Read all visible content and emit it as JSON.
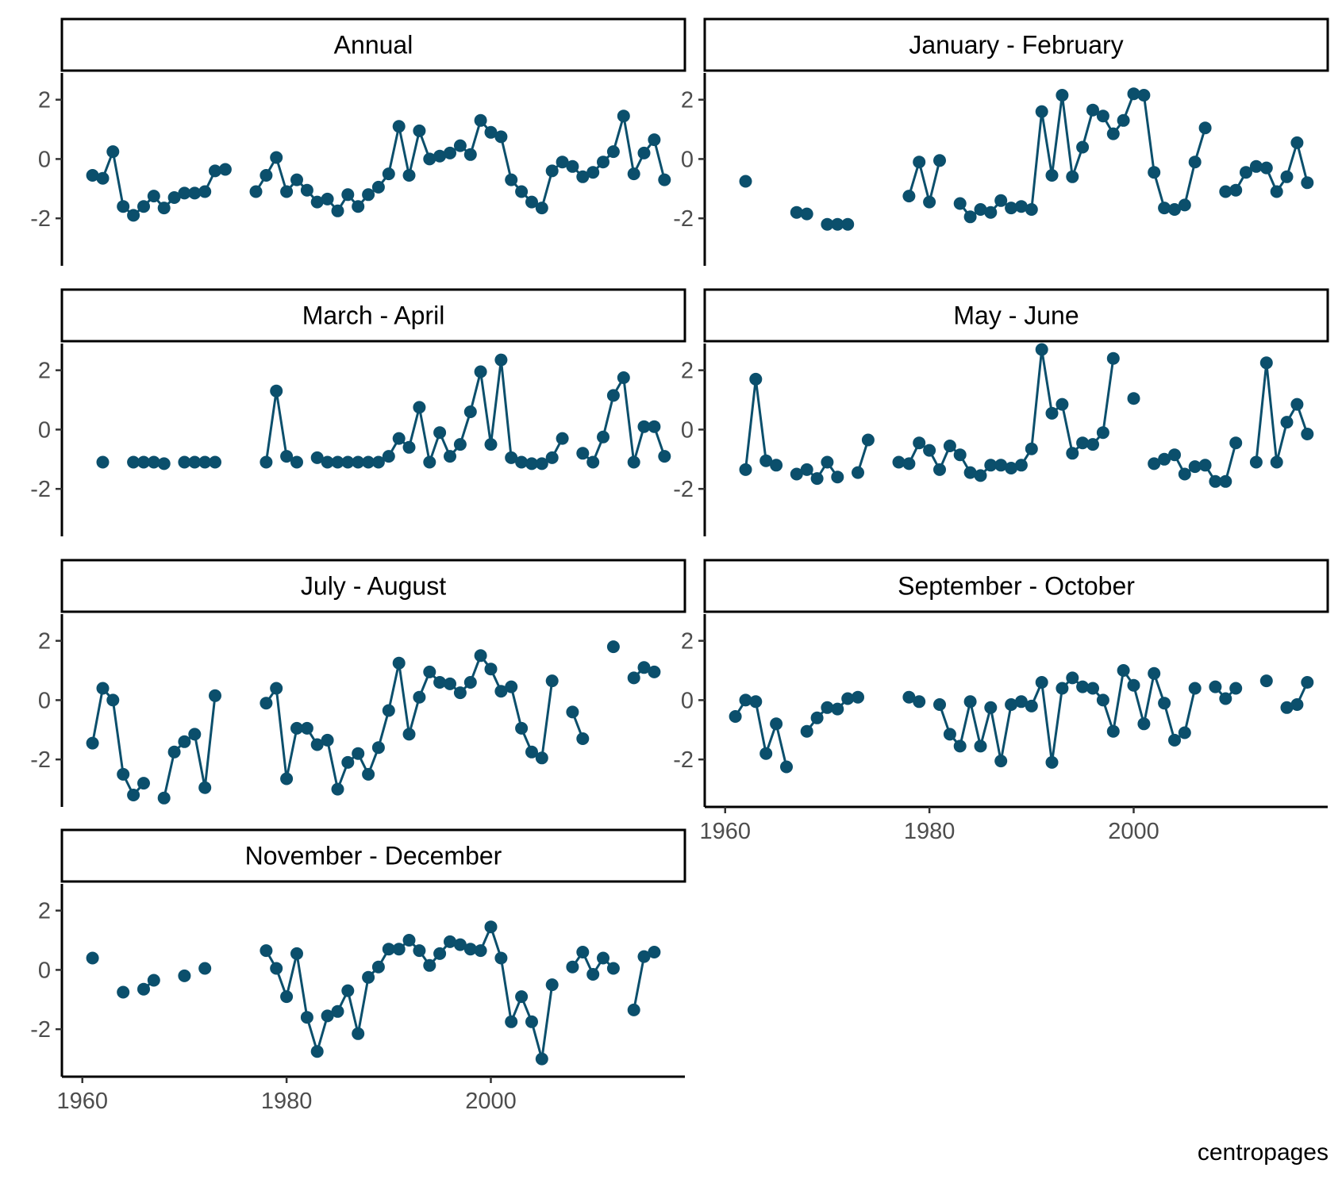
{
  "chart_data": {
    "type": "line",
    "layout": "facet-grid",
    "caption": "centropages",
    "series_color": "#0b4f6c",
    "ylim": [
      -3.6,
      2.9
    ],
    "yticks": [
      -2,
      0,
      2
    ],
    "ytick_labels": [
      "-2",
      "0",
      "2"
    ],
    "xlim": [
      1958,
      2019
    ],
    "xticks": [
      1960,
      1980,
      2000
    ],
    "xtick_labels": [
      "1960",
      "1980",
      "2000"
    ],
    "panels": [
      {
        "strip": "Annual",
        "x": [
          1961,
          1962,
          1963,
          1964,
          1965,
          1966,
          1967,
          1968,
          1969,
          1970,
          1971,
          1972,
          1973,
          1974,
          null,
          1977,
          1978,
          1979,
          1980,
          1981,
          1982,
          1983,
          1984,
          1985,
          1986,
          1987,
          1988,
          1989,
          1990,
          1991,
          1992,
          1993,
          1994,
          1995,
          1996,
          1997,
          1998,
          1999,
          2000,
          2001,
          2002,
          2003,
          2004,
          2005,
          2006,
          2007,
          2008,
          2009,
          2010,
          2011,
          2012,
          2013,
          2014,
          2015,
          2016,
          2017
        ],
        "y": [
          -0.55,
          -0.65,
          0.25,
          -1.6,
          -1.9,
          -1.6,
          -1.25,
          -1.65,
          -1.3,
          -1.15,
          -1.15,
          -1.1,
          -0.4,
          -0.35,
          null,
          -1.1,
          -0.55,
          0.05,
          -1.1,
          -0.7,
          -1.05,
          -1.45,
          -1.35,
          -1.75,
          -1.2,
          -1.6,
          -1.2,
          -0.95,
          -0.5,
          1.1,
          -0.55,
          0.95,
          0.0,
          0.1,
          0.2,
          0.45,
          0.15,
          1.3,
          0.9,
          0.75,
          -0.7,
          -1.1,
          -1.45,
          -1.65,
          -0.4,
          -0.1,
          -0.25,
          -0.6,
          -0.45,
          -0.1,
          0.25,
          1.45,
          -0.5,
          0.2,
          0.65,
          -0.7
        ]
      },
      {
        "strip": "January - February",
        "x": [
          1962,
          null,
          1967,
          1968,
          null,
          1970,
          1971,
          1972,
          null,
          1978,
          1979,
          1980,
          1981,
          null,
          1983,
          1984,
          1985,
          1986,
          1987,
          1988,
          1989,
          1990,
          1991,
          1992,
          1993,
          1994,
          1995,
          1996,
          1997,
          1998,
          1999,
          2000,
          2001,
          2002,
          2003,
          2004,
          2005,
          2006,
          2007,
          null,
          2009,
          2010,
          2011,
          2012,
          2013,
          2014,
          2015,
          2016,
          2017
        ],
        "y": [
          -0.75,
          null,
          -1.8,
          -1.85,
          null,
          -2.2,
          -2.2,
          -2.2,
          null,
          -1.25,
          -0.1,
          -1.45,
          -0.05,
          null,
          -1.5,
          -1.95,
          -1.7,
          -1.8,
          -1.4,
          -1.65,
          -1.6,
          -1.7,
          1.6,
          -0.55,
          2.15,
          -0.6,
          0.4,
          1.65,
          1.45,
          0.85,
          1.3,
          2.2,
          2.15,
          -0.45,
          -1.65,
          -1.7,
          -1.55,
          -0.1,
          1.05,
          null,
          -1.1,
          -1.05,
          -0.45,
          -0.25,
          -0.3,
          -1.1,
          -0.6,
          0.55,
          -0.8
        ]
      },
      {
        "strip": "March - April",
        "x": [
          1962,
          null,
          1965,
          1966,
          1967,
          1968,
          null,
          1970,
          1971,
          1972,
          1973,
          null,
          1978,
          1979,
          1980,
          1981,
          null,
          1983,
          1984,
          1985,
          1986,
          1987,
          1988,
          1989,
          1990,
          1991,
          1992,
          1993,
          1994,
          1995,
          1996,
          1997,
          1998,
          1999,
          2000,
          2001,
          2002,
          2003,
          2004,
          2005,
          2006,
          2007,
          null,
          2009,
          2010,
          2011,
          2012,
          2013,
          2014,
          2015,
          2016,
          2017
        ],
        "y": [
          -1.1,
          null,
          -1.1,
          -1.1,
          -1.1,
          -1.15,
          null,
          -1.1,
          -1.1,
          -1.1,
          -1.1,
          null,
          -1.1,
          1.3,
          -0.9,
          -1.1,
          null,
          -0.95,
          -1.1,
          -1.1,
          -1.1,
          -1.1,
          -1.1,
          -1.1,
          -0.9,
          -0.3,
          -0.6,
          0.75,
          -1.1,
          -0.1,
          -0.9,
          -0.5,
          0.6,
          1.95,
          -0.5,
          2.35,
          -0.95,
          -1.1,
          -1.15,
          -1.15,
          -0.95,
          -0.3,
          null,
          -0.8,
          -1.1,
          -0.25,
          1.15,
          1.75,
          -1.1,
          0.1,
          0.1,
          -0.9
        ]
      },
      {
        "strip": "May - June",
        "x": [
          1962,
          1963,
          1964,
          1965,
          null,
          1967,
          1968,
          1969,
          1970,
          1971,
          null,
          1973,
          1974,
          null,
          1977,
          1978,
          1979,
          1980,
          1981,
          1982,
          1983,
          1984,
          1985,
          1986,
          1987,
          1988,
          1989,
          1990,
          1991,
          1992,
          1993,
          1994,
          1995,
          1996,
          1997,
          1998,
          null,
          2000,
          null,
          2002,
          2003,
          2004,
          2005,
          2006,
          2007,
          2008,
          2009,
          2010,
          null,
          2012,
          2013,
          2014,
          2015,
          2016,
          2017
        ],
        "y": [
          -1.35,
          1.7,
          -1.05,
          -1.2,
          null,
          -1.5,
          -1.35,
          -1.65,
          -1.1,
          -1.6,
          null,
          -1.45,
          -0.35,
          null,
          -1.1,
          -1.15,
          -0.45,
          -0.7,
          -1.35,
          -0.55,
          -0.85,
          -1.45,
          -1.55,
          -1.2,
          -1.2,
          -1.3,
          -1.2,
          -0.65,
          2.7,
          0.55,
          0.85,
          -0.8,
          -0.45,
          -0.5,
          -0.1,
          2.4,
          null,
          1.05,
          null,
          -1.15,
          -1.0,
          -0.85,
          -1.5,
          -1.25,
          -1.2,
          -1.75,
          -1.75,
          -0.45,
          null,
          -1.1,
          2.25,
          -1.1,
          0.25,
          0.85,
          -0.15
        ]
      },
      {
        "strip": "July - August",
        "x": [
          1961,
          1962,
          1963,
          1964,
          1965,
          1966,
          null,
          1968,
          1969,
          1970,
          1971,
          1972,
          1973,
          null,
          1978,
          1979,
          1980,
          1981,
          1982,
          1983,
          1984,
          1985,
          1986,
          1987,
          1988,
          1989,
          1990,
          1991,
          1992,
          1993,
          1994,
          1995,
          1996,
          1997,
          1998,
          1999,
          2000,
          2001,
          2002,
          2003,
          2004,
          2005,
          2006,
          null,
          2008,
          2009,
          null,
          2012,
          null,
          2014,
          2015,
          2016
        ],
        "y": [
          -1.45,
          0.4,
          0.0,
          -2.5,
          -3.2,
          -2.8,
          null,
          -3.3,
          -1.75,
          -1.4,
          -1.15,
          -2.95,
          0.15,
          null,
          -0.1,
          0.4,
          -2.65,
          -0.95,
          -0.95,
          -1.5,
          -1.35,
          -3.0,
          -2.1,
          -1.8,
          -2.5,
          -1.6,
          -0.35,
          1.25,
          -1.15,
          0.1,
          0.95,
          0.6,
          0.55,
          0.25,
          0.6,
          1.5,
          1.05,
          0.3,
          0.45,
          -0.95,
          -1.75,
          -1.95,
          0.65,
          null,
          -0.4,
          -1.3,
          null,
          1.8,
          null,
          0.75,
          1.1,
          0.95
        ]
      },
      {
        "strip": "September - October",
        "x": [
          1961,
          1962,
          1963,
          1964,
          1965,
          1966,
          null,
          1968,
          1969,
          1970,
          1971,
          1972,
          1973,
          null,
          1978,
          1979,
          null,
          1981,
          1982,
          1983,
          1984,
          1985,
          1986,
          1987,
          1988,
          1989,
          1990,
          1991,
          1992,
          1993,
          1994,
          1995,
          1996,
          1997,
          1998,
          1999,
          2000,
          2001,
          2002,
          2003,
          2004,
          2005,
          2006,
          null,
          2008,
          2009,
          2010,
          null,
          2013,
          null,
          2015,
          2016,
          2017
        ],
        "y": [
          -0.55,
          0.0,
          -0.05,
          -1.8,
          -0.8,
          -2.25,
          null,
          -1.05,
          -0.6,
          -0.25,
          -0.3,
          0.05,
          0.1,
          null,
          0.1,
          -0.05,
          null,
          -0.15,
          -1.15,
          -1.55,
          -0.05,
          -1.55,
          -0.25,
          -2.05,
          -0.15,
          -0.05,
          -0.2,
          0.6,
          -2.1,
          0.4,
          0.75,
          0.45,
          0.4,
          0.0,
          -1.05,
          1.0,
          0.5,
          -0.8,
          0.9,
          -0.1,
          -1.35,
          -1.1,
          0.4,
          null,
          0.45,
          0.05,
          0.4,
          null,
          0.65,
          null,
          -0.25,
          -0.15,
          0.6
        ]
      },
      {
        "strip": "November - December",
        "x": [
          1961,
          null,
          1964,
          null,
          1966,
          1967,
          null,
          1970,
          null,
          1972,
          null,
          1978,
          1979,
          1980,
          1981,
          1982,
          1983,
          1984,
          1985,
          1986,
          1987,
          1988,
          1989,
          1990,
          1991,
          1992,
          1993,
          1994,
          1995,
          1996,
          1997,
          1998,
          1999,
          2000,
          2001,
          2002,
          2003,
          2004,
          2005,
          2006,
          null,
          2008,
          2009,
          2010,
          2011,
          2012,
          null,
          2014,
          2015,
          2016
        ],
        "y": [
          0.4,
          null,
          -0.75,
          null,
          -0.65,
          -0.35,
          null,
          -0.2,
          null,
          0.05,
          null,
          0.65,
          0.05,
          -0.9,
          0.55,
          -1.6,
          -2.75,
          -1.55,
          -1.4,
          -0.7,
          -2.15,
          -0.25,
          0.1,
          0.7,
          0.7,
          1.0,
          0.65,
          0.15,
          0.55,
          0.95,
          0.85,
          0.7,
          0.65,
          1.45,
          0.4,
          -1.75,
          -0.9,
          -1.75,
          -3.0,
          -0.5,
          null,
          0.1,
          0.6,
          -0.15,
          0.4,
          0.05,
          null,
          -1.35,
          0.45,
          0.6
        ]
      }
    ]
  }
}
